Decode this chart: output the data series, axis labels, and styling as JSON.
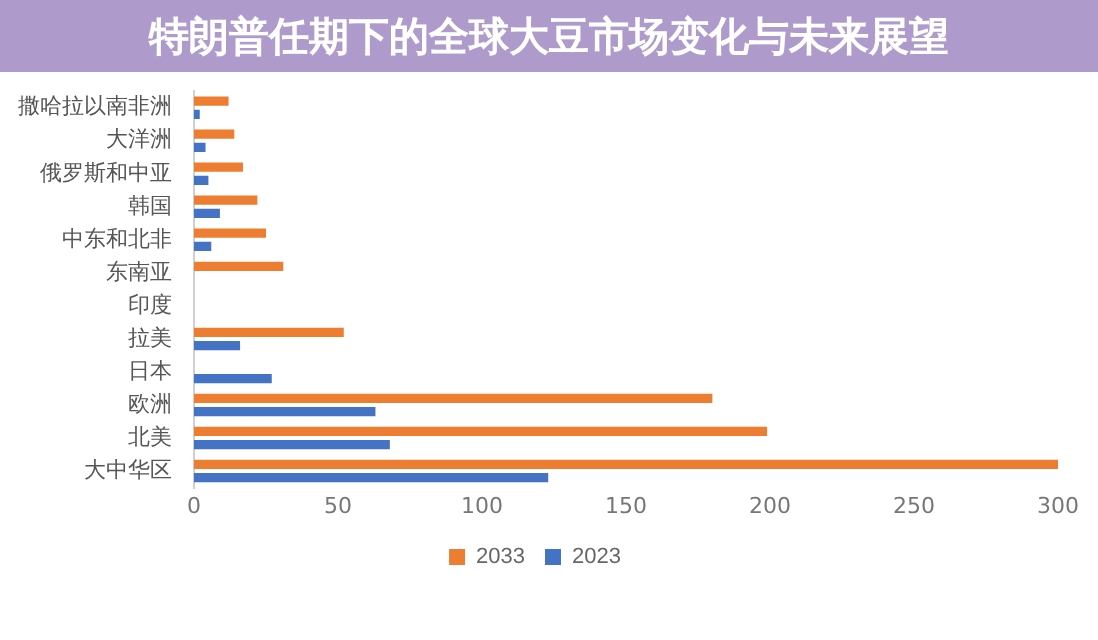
{
  "chart_data": {
    "type": "bar",
    "orientation": "horizontal",
    "title": "特朗普任期下的全球大豆市场变化与未来展望",
    "categories": [
      "撒哈拉以南非洲",
      "大洋洲",
      "俄罗斯和中亚",
      "韩国",
      "中东和北非",
      "东南亚",
      "印度",
      "拉美",
      "日本",
      "欧洲",
      "北美",
      "大中华区"
    ],
    "series": [
      {
        "name": "2033",
        "color": "#ed7d31",
        "values": [
          12,
          14,
          17,
          22,
          25,
          31,
          null,
          52,
          null,
          180,
          199,
          300
        ]
      },
      {
        "name": "2023",
        "color": "#4472c4",
        "values": [
          2,
          4,
          5,
          9,
          6,
          null,
          null,
          16,
          27,
          63,
          68,
          123
        ]
      }
    ],
    "xlim": [
      0,
      300
    ],
    "xticks": [
      0,
      50,
      100,
      150,
      200,
      250,
      300
    ],
    "grid": false,
    "legend": "bottom"
  }
}
